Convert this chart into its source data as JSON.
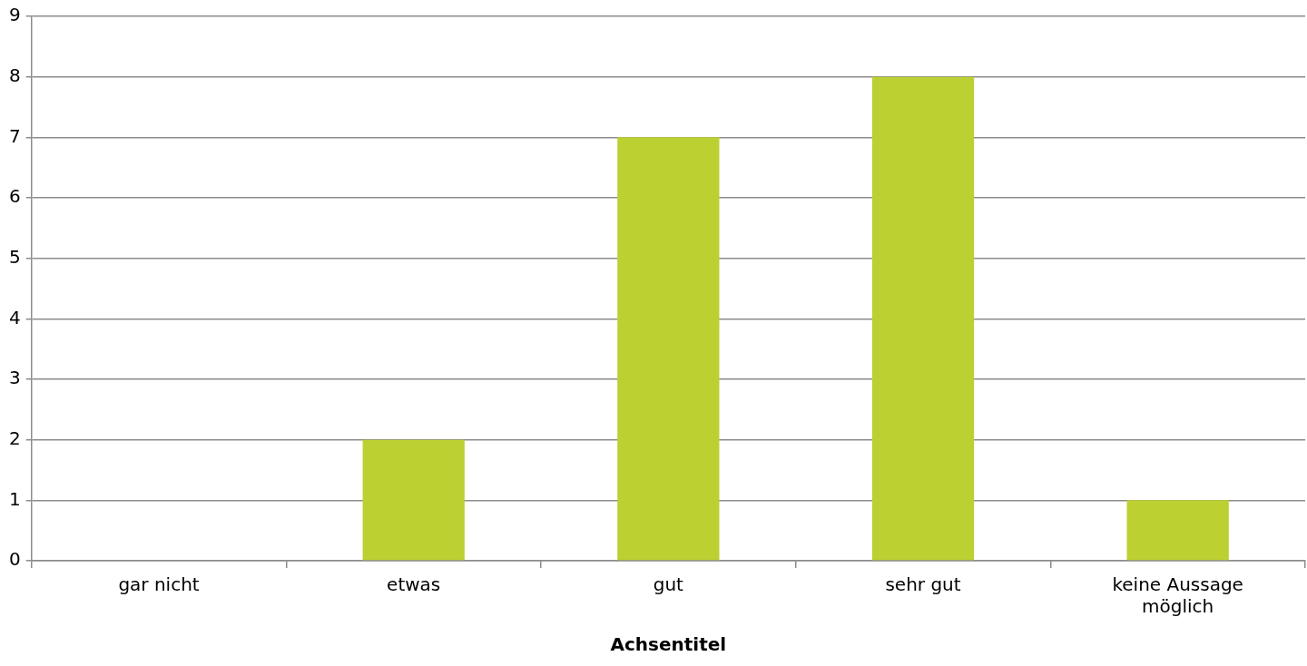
{
  "chart_data": {
    "type": "bar",
    "xlabel": "Achsentitel",
    "categories": [
      "gar nicht",
      "etwas",
      "gut",
      "sehr gut",
      "keine Aussage möglich"
    ],
    "values": [
      0,
      2,
      7,
      8,
      1
    ],
    "color": "#bcd031",
    "ylim": [
      0,
      9
    ],
    "yticks": [
      0,
      1,
      2,
      3,
      4,
      5,
      6,
      7,
      8,
      9
    ],
    "grid": "y",
    "legend": false
  }
}
